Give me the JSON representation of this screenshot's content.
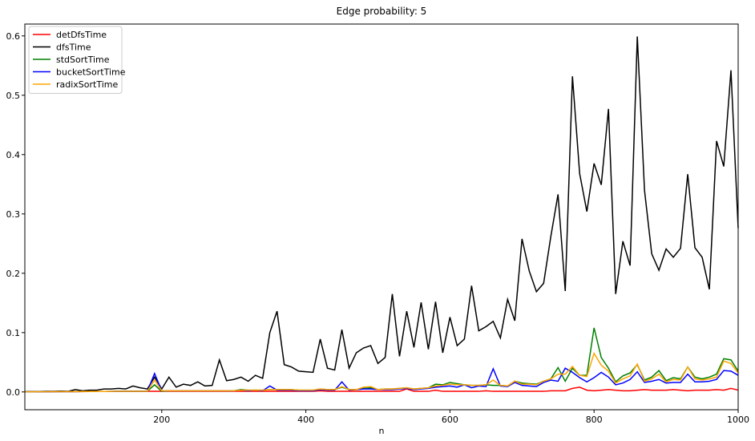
{
  "chart_data": {
    "type": "line",
    "title": "Edge probability: 5",
    "xlabel": "n",
    "x": [
      10,
      20,
      30,
      40,
      50,
      60,
      70,
      80,
      90,
      100,
      110,
      120,
      130,
      140,
      150,
      160,
      170,
      180,
      190,
      200,
      210,
      220,
      230,
      240,
      250,
      260,
      270,
      280,
      290,
      300,
      310,
      320,
      330,
      340,
      350,
      360,
      370,
      380,
      390,
      400,
      410,
      420,
      430,
      440,
      450,
      460,
      470,
      480,
      490,
      500,
      510,
      520,
      530,
      540,
      550,
      560,
      570,
      580,
      590,
      600,
      610,
      620,
      630,
      640,
      650,
      660,
      670,
      680,
      690,
      700,
      710,
      720,
      730,
      740,
      750,
      760,
      770,
      780,
      790,
      800,
      810,
      820,
      830,
      840,
      850,
      860,
      870,
      880,
      890,
      900,
      910,
      920,
      930,
      940,
      950,
      960,
      970,
      980,
      990,
      1000
    ],
    "series": [
      {
        "name": "detDfsTime",
        "color": "#ff0000",
        "values": [
          0.0002,
          0.0003,
          0.0003,
          0.0004,
          0.0004,
          0.0005,
          0.0005,
          0.0006,
          0.0006,
          0.0007,
          0.0007,
          0.0008,
          0.0008,
          0.0009,
          0.0009,
          0.001,
          0.001,
          0.001,
          0.001,
          0.001,
          0.001,
          0.001,
          0.001,
          0.001,
          0.001,
          0.001,
          0.001,
          0.001,
          0.001,
          0.001,
          0.001,
          0.001,
          0.001,
          0.001,
          0.001,
          0.001,
          0.001,
          0.001,
          0.001,
          0.001,
          0.001,
          0.002,
          0.001,
          0.001,
          0.001,
          0.001,
          0.001,
          0.001,
          0.001,
          0.001,
          0.001,
          0.001,
          0.001,
          0.005,
          0.001,
          0.001,
          0.001,
          0.003,
          0.001,
          0.001,
          0.001,
          0.001,
          0.001,
          0.001,
          0.002,
          0.001,
          0.001,
          0.001,
          0.001,
          0.001,
          0.001,
          0.001,
          0.001,
          0.002,
          0.002,
          0.002,
          0.006,
          0.008,
          0.003,
          0.002,
          0.003,
          0.004,
          0.003,
          0.002,
          0.002,
          0.003,
          0.004,
          0.003,
          0.003,
          0.003,
          0.004,
          0.003,
          0.002,
          0.003,
          0.003,
          0.003,
          0.004,
          0.003,
          0.006,
          0.003
        ]
      },
      {
        "name": "dfsTime",
        "color": "#000000",
        "values": [
          0.0005,
          0.0006,
          0.0008,
          0.001,
          0.001,
          0.0015,
          0.001,
          0.004,
          0.002,
          0.003,
          0.003,
          0.005,
          0.005,
          0.006,
          0.005,
          0.01,
          0.007,
          0.005,
          0.025,
          0.005,
          0.025,
          0.008,
          0.013,
          0.011,
          0.017,
          0.01,
          0.011,
          0.054,
          0.019,
          0.021,
          0.025,
          0.018,
          0.028,
          0.023,
          0.1,
          0.136,
          0.046,
          0.042,
          0.035,
          0.034,
          0.033,
          0.089,
          0.04,
          0.037,
          0.105,
          0.04,
          0.066,
          0.074,
          0.078,
          0.048,
          0.058,
          0.165,
          0.06,
          0.136,
          0.075,
          0.151,
          0.072,
          0.152,
          0.066,
          0.126,
          0.078,
          0.089,
          0.179,
          0.103,
          0.11,
          0.119,
          0.091,
          0.156,
          0.12,
          0.258,
          0.204,
          0.169,
          0.183,
          0.262,
          0.333,
          0.17,
          0.532,
          0.368,
          0.304,
          0.385,
          0.349,
          0.477,
          0.165,
          0.254,
          0.213,
          0.599,
          0.34,
          0.233,
          0.205,
          0.241,
          0.227,
          0.242,
          0.367,
          0.243,
          0.227,
          0.173,
          0.423,
          0.38,
          0.542,
          0.276
        ]
      },
      {
        "name": "stdSortTime",
        "color": "#008000",
        "values": [
          0.0003,
          0.0003,
          0.0004,
          0.0004,
          0.0005,
          0.0005,
          0.0006,
          0.0006,
          0.0007,
          0.0007,
          0.0008,
          0.0008,
          0.0009,
          0.001,
          0.001,
          0.001,
          0.001,
          0.001,
          0.012,
          0.001,
          0.002,
          0.002,
          0.002,
          0.002,
          0.002,
          0.002,
          0.002,
          0.002,
          0.002,
          0.002,
          0.004,
          0.003,
          0.003,
          0.003,
          0.004,
          0.004,
          0.004,
          0.004,
          0.003,
          0.003,
          0.003,
          0.005,
          0.004,
          0.004,
          0.008,
          0.004,
          0.004,
          0.006,
          0.007,
          0.004,
          0.005,
          0.005,
          0.006,
          0.007,
          0.005,
          0.006,
          0.007,
          0.013,
          0.012,
          0.016,
          0.014,
          0.012,
          0.011,
          0.011,
          0.012,
          0.011,
          0.011,
          0.01,
          0.018,
          0.015,
          0.014,
          0.013,
          0.018,
          0.022,
          0.041,
          0.018,
          0.04,
          0.028,
          0.028,
          0.108,
          0.058,
          0.04,
          0.017,
          0.027,
          0.032,
          0.046,
          0.02,
          0.025,
          0.036,
          0.019,
          0.024,
          0.022,
          0.042,
          0.025,
          0.022,
          0.025,
          0.03,
          0.056,
          0.054,
          0.035
        ]
      },
      {
        "name": "bucketSortTime",
        "color": "#0000ff",
        "values": [
          0.0003,
          0.0003,
          0.0004,
          0.0004,
          0.0005,
          0.0005,
          0.0006,
          0.0006,
          0.0007,
          0.0007,
          0.0008,
          0.0008,
          0.0009,
          0.001,
          0.001,
          0.001,
          0.001,
          0.001,
          0.031,
          0.002,
          0.002,
          0.002,
          0.002,
          0.002,
          0.002,
          0.002,
          0.002,
          0.002,
          0.002,
          0.002,
          0.003,
          0.002,
          0.003,
          0.002,
          0.01,
          0.003,
          0.003,
          0.003,
          0.002,
          0.002,
          0.002,
          0.004,
          0.003,
          0.003,
          0.017,
          0.003,
          0.004,
          0.005,
          0.005,
          0.004,
          0.004,
          0.004,
          0.005,
          0.006,
          0.004,
          0.005,
          0.006,
          0.008,
          0.009,
          0.01,
          0.008,
          0.012,
          0.007,
          0.01,
          0.009,
          0.039,
          0.01,
          0.009,
          0.016,
          0.011,
          0.01,
          0.009,
          0.016,
          0.02,
          0.018,
          0.04,
          0.033,
          0.024,
          0.017,
          0.024,
          0.033,
          0.025,
          0.012,
          0.015,
          0.021,
          0.034,
          0.016,
          0.018,
          0.021,
          0.015,
          0.016,
          0.016,
          0.03,
          0.017,
          0.017,
          0.018,
          0.021,
          0.036,
          0.035,
          0.028
        ]
      },
      {
        "name": "radixSortTime",
        "color": "#ffa500",
        "values": [
          0.0003,
          0.0003,
          0.0004,
          0.0004,
          0.0005,
          0.0005,
          0.0006,
          0.0006,
          0.0007,
          0.0007,
          0.0008,
          0.0008,
          0.0009,
          0.001,
          0.001,
          0.001,
          0.001,
          0.001,
          0.02,
          0.002,
          0.002,
          0.002,
          0.002,
          0.002,
          0.002,
          0.002,
          0.002,
          0.002,
          0.002,
          0.002,
          0.003,
          0.003,
          0.003,
          0.003,
          0.004,
          0.004,
          0.004,
          0.004,
          0.003,
          0.003,
          0.003,
          0.005,
          0.004,
          0.004,
          0.009,
          0.004,
          0.004,
          0.008,
          0.009,
          0.004,
          0.005,
          0.005,
          0.006,
          0.007,
          0.005,
          0.006,
          0.007,
          0.01,
          0.011,
          0.013,
          0.012,
          0.012,
          0.011,
          0.011,
          0.012,
          0.02,
          0.011,
          0.01,
          0.018,
          0.013,
          0.013,
          0.012,
          0.018,
          0.022,
          0.03,
          0.03,
          0.043,
          0.028,
          0.026,
          0.065,
          0.045,
          0.035,
          0.015,
          0.022,
          0.027,
          0.047,
          0.018,
          0.022,
          0.03,
          0.017,
          0.021,
          0.02,
          0.042,
          0.022,
          0.02,
          0.022,
          0.025,
          0.052,
          0.048,
          0.032
        ]
      }
    ],
    "xlim": [
      10,
      1000
    ],
    "ylim": [
      -0.03,
      0.62
    ],
    "xticks": [
      200,
      400,
      600,
      800,
      1000
    ],
    "yticks": [
      {
        "value": 0,
        "label": "0.0"
      },
      {
        "value": 0.1,
        "label": "0.1"
      },
      0.2,
      0.3,
      0.4,
      0.5,
      0.6
    ],
    "legend": "upper-left"
  }
}
